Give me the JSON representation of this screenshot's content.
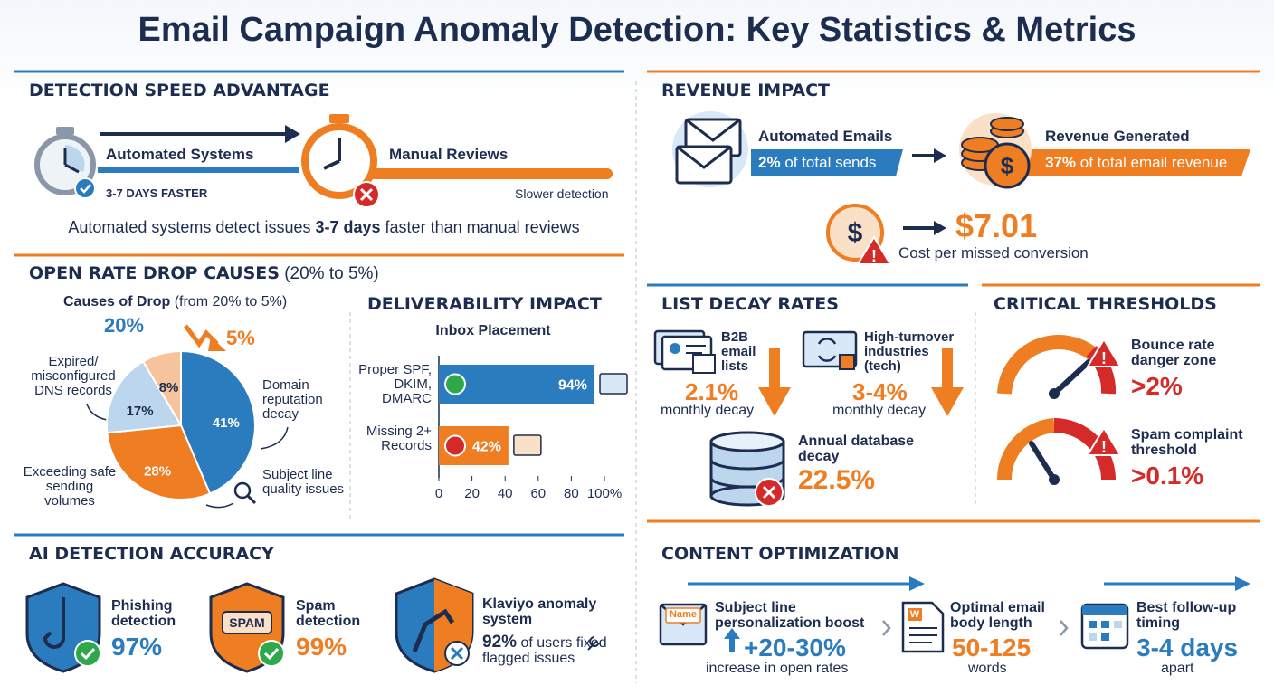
{
  "title": "Email Campaign Anomaly Detection: Key Statistics & Metrics",
  "detection_speed": {
    "heading": "DETECTION SPEED ADVANTAGE",
    "automated": {
      "label": "Automated Systems",
      "note": "3-7 DAYS FASTER"
    },
    "manual": {
      "label": "Manual Reviews",
      "note": "Slower detection"
    },
    "summary": {
      "before": "Automated systems detect issues",
      "highlight": "3-7 days",
      "after": "faster than manual reviews"
    }
  },
  "revenue_impact": {
    "heading": "REVENUE IMPACT",
    "automated": {
      "label": "Automated Emails",
      "value": "2%",
      "text": "of total sends"
    },
    "revenue": {
      "label": "Revenue Generated",
      "value": "37%",
      "text": "of total email revenue"
    },
    "cost": {
      "value": "$7.01",
      "label": "Cost per missed conversion"
    }
  },
  "open_rate": {
    "heading": "OPEN RATE DROP CAUSES",
    "heading_note": "(20% to 5%)"
  },
  "list_decay": {
    "heading": "LIST DECAY RATES",
    "items": [
      {
        "label": "B2B email lists",
        "value": "2.1%",
        "note": "monthly decay"
      },
      {
        "label": "High-turnover industries (tech)",
        "value": "3-4%",
        "note": "monthly decay"
      }
    ],
    "annual": {
      "label": "Annual database decay",
      "value": "22.5%"
    }
  },
  "critical_thresholds": {
    "heading": "CRITICAL THRESHOLDS",
    "items": [
      {
        "label": "Bounce rate danger zone",
        "value": ">2%"
      },
      {
        "label": "Spam complaint threshold",
        "value": ">0.1%"
      }
    ]
  },
  "ai_accuracy": {
    "heading": "AI DETECTION ACCURACY",
    "items": [
      {
        "label": "Phishing detection",
        "value": "97%"
      },
      {
        "icon_text": "SPAM",
        "label": "Spam detection",
        "value": "99%"
      },
      {
        "label": "Klaviyo anomaly system",
        "value": "92%",
        "text": "of users fixed flagged issues"
      }
    ]
  },
  "content_optimization": {
    "heading": "CONTENT OPTIMIZATION",
    "items": [
      {
        "icon_text": "Name",
        "label": "Subject line personalization boost",
        "value": "+20-30%",
        "note": "increase in open rates"
      },
      {
        "icon_text": "W",
        "label": "Optimal email body length",
        "value": "50-125",
        "note": "words"
      },
      {
        "label": "Best follow-up timing",
        "value": "3-4 days",
        "note": "apart"
      }
    ]
  },
  "chart_data": [
    {
      "type": "pie",
      "title": "Causes of Drop",
      "subtitle": "(from 20% to 5%)",
      "annotations": [
        "20%",
        "5%"
      ],
      "categories": [
        "Domain reputation decay",
        "Exceeding safe sending volumes",
        "Expired/ misconfigured DNS records",
        "Subject line quality issues"
      ],
      "values": [
        41,
        28,
        17,
        8
      ],
      "value_labels": [
        "41%",
        "28%",
        "17%",
        "8%"
      ],
      "colors": [
        "#2b7bbf",
        "#ef7d22",
        "#bcd6ee",
        "#f6c39c"
      ]
    },
    {
      "type": "bar",
      "title": "DELIVERABILITY IMPACT",
      "subtitle": "Inbox Placement",
      "orientation": "horizontal",
      "categories": [
        "Proper SPF, DKIM, DMARC",
        "Missing 2+ Records"
      ],
      "values": [
        94,
        42
      ],
      "value_labels": [
        "94%",
        "42%"
      ],
      "colors": [
        "#2b7bbf",
        "#ef7d22"
      ],
      "xlim": [
        0,
        100
      ],
      "xticks": [
        0,
        20,
        40,
        60,
        80,
        {
          "value": 100,
          "label": "100%"
        }
      ]
    }
  ]
}
